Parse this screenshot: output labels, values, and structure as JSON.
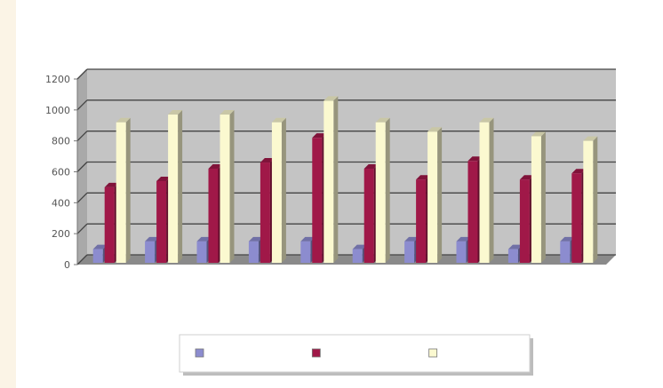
{
  "chart_data": {
    "type": "bar",
    "title": "",
    "xlabel": "",
    "ylabel": "",
    "ylim": [
      0,
      1200
    ],
    "yticks": [
      0,
      200,
      400,
      600,
      800,
      1000,
      1200
    ],
    "grid": true,
    "legend_position": "bottom",
    "categories": [
      "",
      "",
      "",
      "",
      "",
      "",
      "",
      "",
      "",
      ""
    ],
    "series": [
      {
        "color": "#8c8ccf",
        "values": [
          100,
          150,
          150,
          150,
          150,
          100,
          150,
          150,
          100,
          150
        ]
      },
      {
        "color": "#a01848",
        "values": [
          500,
          540,
          620,
          660,
          820,
          620,
          550,
          670,
          550,
          590
        ]
      },
      {
        "color": "#fbf9d0",
        "values": [
          920,
          970,
          970,
          920,
          1060,
          920,
          860,
          920,
          830,
          800
        ]
      }
    ]
  }
}
